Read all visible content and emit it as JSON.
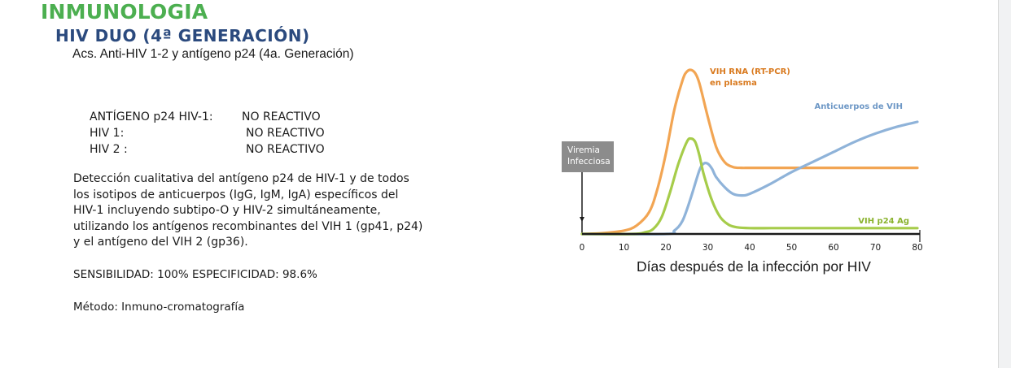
{
  "header": {
    "section": "INMUNOLOGIA",
    "test_name": "HIV DUO (4ª GENERACIÓN)",
    "test_subtitle": "Acs. Anti-HIV 1-2 y antígeno p24 (4a. Generación)"
  },
  "results": [
    {
      "label": "ANTÍGENO p24 HIV-1:",
      "value": "NO REACTIVO"
    },
    {
      "label": "HIV 1:",
      "value": "NO REACTIVO"
    },
    {
      "label": "HIV 2 :",
      "value": "NO REACTIVO"
    }
  ],
  "description_lines": [
    "Detección cualitativa del antígeno p24 de HIV-1 y de todos",
    "los isotipos de anticuerpos (IgG, IgM, IgA) específicos del",
    "HIV-1 incluyendo subtipo-O y HIV-2 simultáneamente,",
    "utilizando los antígenos recombinantes del VIH 1 (gp41, p24)",
    "y el antígeno del VIH 2 (gp36)."
  ],
  "sensitivity": "SENSIBILIDAD: 100% ESPECIFICIDAD: 98.6%",
  "method": "Método: Inmuno-cromatografía",
  "colors": {
    "section": "#4caf50",
    "test_title": "#2b4a7e",
    "rna": "#f2a553",
    "antibodies": "#8fb3d9",
    "p24": "#a6cc4a",
    "viremia_box": "#8c8c8c"
  },
  "chart_data": {
    "type": "line",
    "xlabel": "Días después de la infección por HIV",
    "ylabel": "",
    "x_ticks": [
      0,
      10,
      20,
      30,
      40,
      50,
      60,
      70,
      80
    ],
    "xlim": [
      0,
      80
    ],
    "ylim": [
      0,
      100
    ],
    "box_label": [
      "Viremia",
      "Infecciosa"
    ],
    "series": [
      {
        "name": "VIH RNA (RT-PCR) en plasma",
        "label_lines": [
          "VIH RNA (RT-PCR)",
          "en plasma"
        ],
        "color_key": "rna",
        "x": [
          0,
          5,
          10,
          13,
          16,
          18,
          20,
          22,
          24,
          25,
          26,
          27,
          28,
          30,
          32,
          34,
          36,
          38,
          40,
          45,
          50,
          60,
          70,
          80
        ],
        "y": [
          0,
          0.5,
          2,
          5,
          13,
          27,
          48,
          74,
          92,
          97,
          98,
          96,
          90,
          70,
          52,
          43,
          40,
          39.5,
          39.5,
          39.5,
          39.5,
          39.5,
          39.5,
          39.5
        ]
      },
      {
        "name": "Anticuerpos de VIH",
        "label_lines": [
          "Anticuerpos de VIH"
        ],
        "color_key": "antibodies",
        "x": [
          0,
          20,
          22,
          24,
          26,
          28,
          29,
          30,
          31,
          32,
          34,
          36,
          38,
          40,
          45,
          50,
          55,
          60,
          65,
          70,
          75,
          80
        ],
        "y": [
          0,
          0,
          2,
          8,
          22,
          38,
          42,
          42,
          39,
          34,
          28,
          24,
          23,
          24,
          30,
          37,
          43,
          49,
          55,
          60,
          64,
          67
        ]
      },
      {
        "name": "VIH p24 Ag",
        "label_lines": [
          "VIH p24 Ag"
        ],
        "color_key": "p24",
        "x": [
          0,
          12,
          15,
          17,
          19,
          21,
          23,
          25,
          26,
          27,
          28,
          29,
          31,
          33,
          35,
          37,
          40,
          45,
          50,
          60,
          70,
          80
        ],
        "y": [
          0,
          0,
          1,
          3,
          10,
          25,
          42,
          55,
          57,
          55,
          47,
          36,
          20,
          10,
          5.5,
          4,
          3.5,
          3.5,
          3.5,
          3.5,
          3.5,
          3.5
        ]
      }
    ]
  }
}
